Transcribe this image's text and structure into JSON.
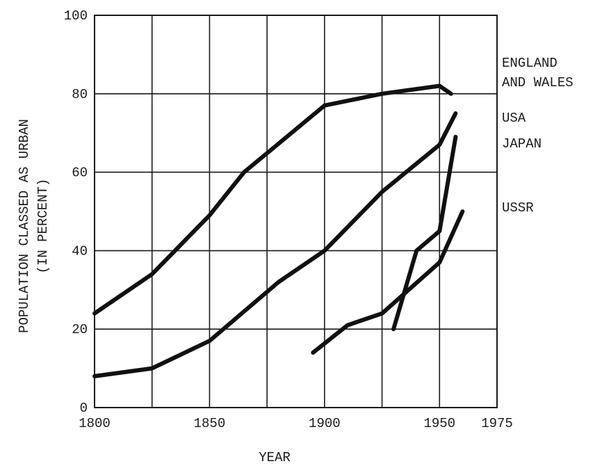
{
  "chart_data": {
    "type": "line",
    "xlabel": "YEAR",
    "ylabel": [
      "POPULATION CLASSED AS URBAN",
      "(IN PERCENT)"
    ],
    "xlim": [
      1800,
      1975
    ],
    "ylim": [
      0,
      100
    ],
    "x_ticks": [
      1800,
      1850,
      1900,
      1950,
      1975
    ],
    "x_gridlines": [
      1800,
      1825,
      1850,
      1875,
      1900,
      1925,
      1950,
      1975
    ],
    "y_ticks": [
      0,
      20,
      40,
      60,
      80,
      100
    ],
    "grid": true,
    "legend_placement": "right",
    "line_color": "#111111",
    "series": [
      {
        "name": "ENGLAND AND WALES",
        "label_lines": [
          "ENGLAND",
          "AND WALES"
        ],
        "x": [
          1800,
          1825,
          1850,
          1865,
          1900,
          1925,
          1950,
          1955
        ],
        "y": [
          24,
          34,
          49,
          60,
          77,
          80,
          82,
          80
        ]
      },
      {
        "name": "USA",
        "label_lines": [
          "USA"
        ],
        "x": [
          1800,
          1825,
          1850,
          1880,
          1900,
          1925,
          1950,
          1957
        ],
        "y": [
          8,
          10,
          17,
          32,
          40,
          55,
          67,
          75
        ]
      },
      {
        "name": "JAPAN",
        "label_lines": [
          "JAPAN"
        ],
        "x": [
          1930,
          1940,
          1950,
          1957
        ],
        "y": [
          20,
          40,
          45,
          69
        ]
      },
      {
        "name": "USSR",
        "label_lines": [
          "USSR"
        ],
        "x": [
          1895,
          1910,
          1925,
          1950,
          1960
        ],
        "y": [
          14,
          21,
          24,
          37,
          50
        ]
      }
    ]
  }
}
